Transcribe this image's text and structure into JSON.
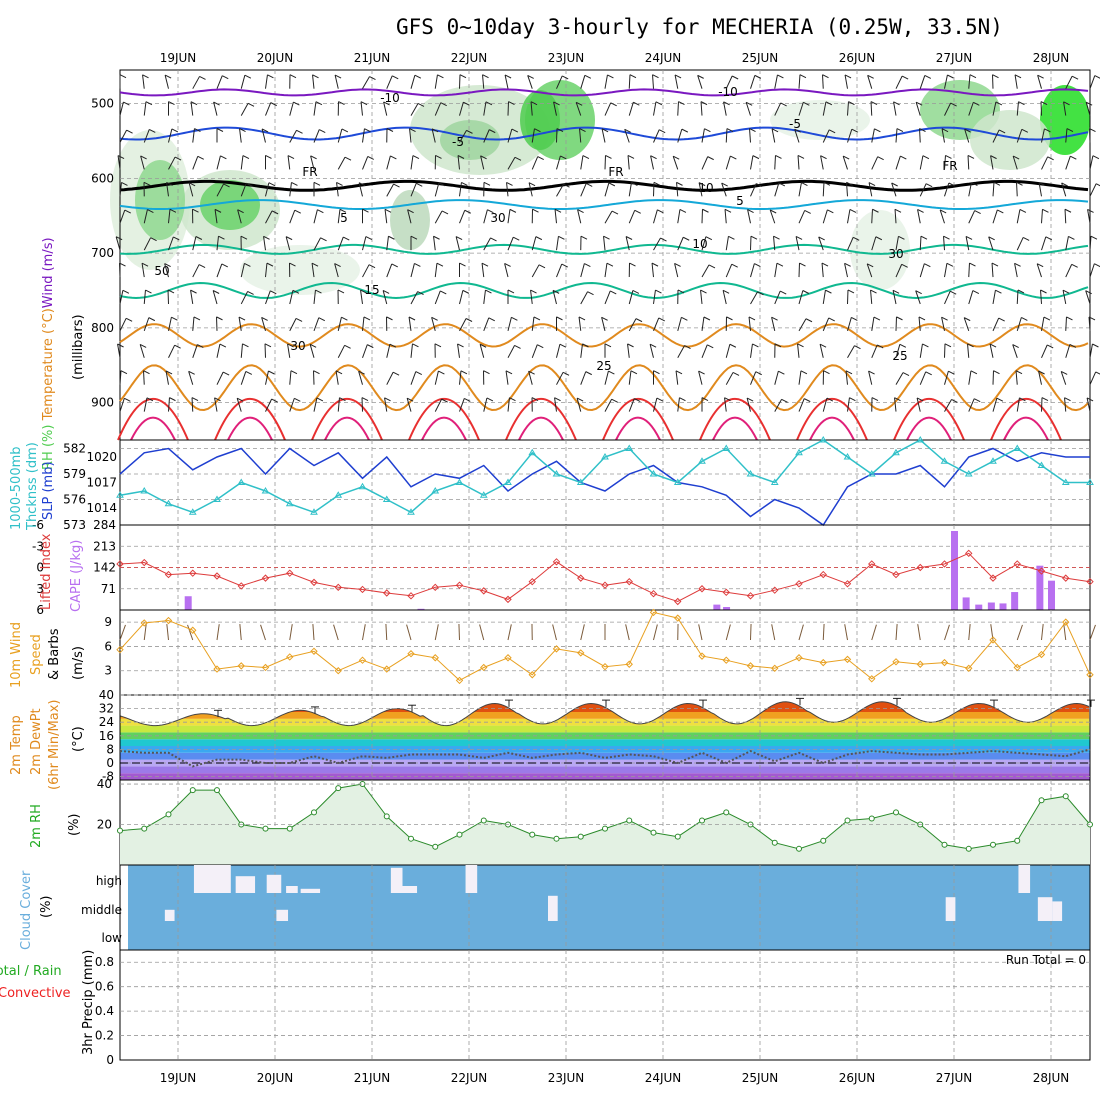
{
  "title": "GFS 0~10day 3-hourly for MECHERIA (0.25W, 33.5N)",
  "days": [
    "19JUN",
    "20JUN",
    "21JUN",
    "22JUN",
    "23JUN",
    "24JUN",
    "25JUN",
    "26JUN",
    "27JUN",
    "28JUN"
  ],
  "colors": {
    "temp_contour_cold": "#7a18c0",
    "temp_contour_blue": "#1e4ad8",
    "freezing": "#000000",
    "temp_contour_cyan": "#14a8d8",
    "temp_contour_teal": "#10b890",
    "temp_contour_orange": "#e08a1e",
    "temp_contour_red": "#e83030",
    "rh_fill": "#4fcc4f",
    "slp_line": "#1f3fd0",
    "thickness_line": "#30c0c8",
    "lifted_index": "#dd3b3b",
    "cape_bar": "#b870f0",
    "wind_speed": "#e8a020",
    "cloud_bg": "#6aaedc",
    "cloud_bar": "#f4f0f8",
    "precip_total": "#22aa22",
    "precip_conv": "#ee2222"
  },
  "panels": {
    "upper_air": {
      "ylabel_parts": [
        "RH (%)",
        "Temperature (°C)",
        "Wind (m/s)"
      ],
      "ylabel_units": "(millibars)",
      "yticks": [
        "500",
        "600",
        "700",
        "800",
        "900"
      ],
      "contour_labels": [
        "-10",
        "-10",
        "-5",
        "-5",
        "-5",
        "FR",
        "FR",
        "FR",
        "5",
        "5",
        "10",
        "15",
        "25",
        "25",
        "50",
        "30",
        "10",
        "30",
        "30",
        "50"
      ]
    },
    "slp": {
      "ylabel_left": "1000-500mb",
      "ylabel_left2": "Thcknss (dm)",
      "ylabel_right": "SLP (mb)",
      "thickness_ticks": [
        "582",
        "579",
        "576",
        "573"
      ],
      "slp_ticks": [
        "1020",
        "1017",
        "1014"
      ]
    },
    "cape": {
      "ylabel_left": "Lifted Index",
      "ylabel_right": "CAPE (J/kg)",
      "li_ticks": [
        "-6",
        "-3",
        "0",
        "3",
        "6"
      ],
      "cape_ticks": [
        "284",
        "213",
        "142",
        "71"
      ]
    },
    "wind": {
      "ylabel_1": "10m Wind",
      "ylabel_2": "Speed",
      "ylabel_3": "& Barbs",
      "ylabel_units": "(m/s)",
      "yticks": [
        "9",
        "6",
        "3"
      ]
    },
    "temp": {
      "ylabel_1": "2m Temp",
      "ylabel_2": "2m DewPt",
      "ylabel_3": "(6hr Min/Max)",
      "ylabel_units": "(°C)",
      "yticks": [
        "40",
        "32",
        "24",
        "16",
        "8",
        "0",
        "-8"
      ]
    },
    "rh": {
      "ylabel": "2m RH",
      "ylabel_units": "(%)",
      "yticks": [
        "40",
        "20"
      ]
    },
    "cloud": {
      "ylabel": "Cloud Cover",
      "ylabel_units": "(%)",
      "levels": [
        "high",
        "middle",
        "low"
      ]
    },
    "precip": {
      "ylabel_1": "Total / Rain",
      "ylabel_2": "Convective",
      "ylabel_3": "3hr Precip (mm)",
      "yticks": [
        "0.8",
        "0.6",
        "0.4",
        "0.2",
        "0"
      ],
      "run_total": "Run Total = 0"
    }
  },
  "chart_data": [
    {
      "type": "line",
      "title": "1000-500mb Thickness / SLP",
      "series": [
        {
          "name": "SLP (mb)",
          "axis": "right",
          "x_days": [
            0,
            0.25,
            0.5,
            0.75,
            1,
            1.25,
            1.5,
            1.75,
            2,
            2.25,
            2.5,
            2.75,
            3,
            3.25,
            3.5,
            3.75,
            4,
            4.25,
            4.5,
            4.75,
            5,
            5.25,
            5.5,
            5.75,
            6,
            6.25,
            6.5,
            6.75,
            7,
            7.25,
            7.5,
            7.75,
            8,
            8.25,
            8.5,
            8.75,
            9,
            9.25,
            9.5,
            9.75,
            10
          ],
          "values": [
            1018,
            1020.5,
            1021,
            1018.5,
            1020,
            1021,
            1018,
            1021,
            1019,
            1020.5,
            1017.5,
            1020,
            1016.5,
            1018,
            1017.5,
            1019,
            1016,
            1018,
            1019.5,
            1017,
            1016,
            1018,
            1019,
            1017,
            1016.5,
            1015.5,
            1013,
            1015,
            1014,
            1012,
            1016.5,
            1018,
            1018,
            1019,
            1016.5,
            1020,
            1021,
            1019.5,
            1020.5,
            1020,
            1020
          ]
        },
        {
          "name": "1000-500mb Thickness (dm)",
          "axis": "left",
          "x_days": [
            0,
            0.25,
            0.5,
            0.75,
            1,
            1.25,
            1.5,
            1.75,
            2,
            2.25,
            2.5,
            2.75,
            3,
            3.25,
            3.5,
            3.75,
            4,
            4.25,
            4.5,
            4.75,
            5,
            5.25,
            5.5,
            5.75,
            6,
            6.25,
            6.5,
            6.75,
            7,
            7.25,
            7.5,
            7.75,
            8,
            8.25,
            8.5,
            8.75,
            9,
            9.25,
            9.5,
            9.75,
            10
          ],
          "values": [
            576.5,
            577,
            575.5,
            574.5,
            576,
            578,
            577,
            575.5,
            574.5,
            576.5,
            577.5,
            576,
            574.5,
            577,
            578,
            576.5,
            578,
            581.5,
            579,
            578,
            581,
            582,
            579,
            578,
            580.5,
            582,
            579,
            578,
            581.5,
            583,
            581,
            579,
            581.5,
            583,
            580.5,
            579,
            580.5,
            582,
            580,
            578,
            578
          ]
        }
      ],
      "ylim_thickness": [
        573,
        583
      ],
      "ylim_slp": [
        1012,
        1022
      ]
    },
    {
      "type": "bar",
      "title": "CAPE / Lifted Index",
      "cape_bars": [
        {
          "day": 0.1,
          "value": 46
        },
        {
          "day": 2.5,
          "value": 4
        },
        {
          "day": 5.55,
          "value": 18
        },
        {
          "day": 5.65,
          "value": 10
        },
        {
          "day": 8.0,
          "value": 264
        },
        {
          "day": 8.12,
          "value": 42
        },
        {
          "day": 8.25,
          "value": 18
        },
        {
          "day": 8.38,
          "value": 25
        },
        {
          "day": 8.5,
          "value": 22
        },
        {
          "day": 8.62,
          "value": 60
        },
        {
          "day": 8.88,
          "value": 148
        },
        {
          "day": 9.0,
          "value": 98
        },
        {
          "day": 9.62,
          "value": 22
        }
      ],
      "lifted_index_values": [
        -0.5,
        -0.7,
        1,
        0.8,
        1.2,
        2.6,
        1.5,
        0.8,
        2.1,
        2.8,
        3.1,
        3.6,
        4.0,
        2.8,
        2.5,
        3.3,
        4.5,
        2.0,
        -0.8,
        1.5,
        2.5,
        2.0,
        3.7,
        4.8,
        3.0,
        3.5,
        4.0,
        3.2,
        2.3,
        1.0,
        2.3,
        -0.5,
        1.0,
        0,
        -0.5,
        -2.0,
        1.5,
        -0.5,
        0.5,
        1.5,
        2.0
      ],
      "li_ylim": [
        -6,
        6
      ],
      "cape_ylim": [
        0,
        284
      ]
    },
    {
      "type": "line",
      "title": "10m Wind Speed",
      "values": [
        5.6,
        8.9,
        9.2,
        8.0,
        3.2,
        3.6,
        3.4,
        4.7,
        5.4,
        3.0,
        4.3,
        3.2,
        5.1,
        4.6,
        1.8,
        3.4,
        4.6,
        2.5,
        5.7,
        5.2,
        3.5,
        3.8,
        10.2,
        9.5,
        4.8,
        4.3,
        3.6,
        3.3,
        4.6,
        4.0,
        4.4,
        2.0,
        4.1,
        3.8,
        4.0,
        3.3,
        6.8,
        3.4,
        5.0,
        9.0,
        2.5
      ],
      "ylim": [
        0,
        10.5
      ]
    },
    {
      "type": "area",
      "title": "2m Temp / DewPt",
      "temp_max": [
        29,
        31,
        32,
        35,
        35,
        35,
        36,
        36,
        35,
        35
      ],
      "temp_min": [
        22,
        22,
        22,
        22,
        23,
        23,
        23,
        24,
        24,
        24
      ],
      "dewpoint": [
        7,
        6,
        6,
        -2,
        2,
        2,
        0,
        0,
        4,
        0,
        4,
        3,
        5,
        5,
        5,
        3,
        6,
        3,
        5,
        6,
        3,
        5,
        4,
        0,
        6,
        0,
        7,
        1,
        6,
        0,
        5,
        7,
        6,
        5,
        5,
        6,
        7,
        6,
        5,
        4,
        8
      ],
      "ylim": [
        -10,
        40
      ]
    },
    {
      "type": "area",
      "title": "2m RH",
      "values": [
        17,
        18,
        25,
        37,
        37,
        20,
        18,
        18,
        26,
        38,
        40,
        24,
        13,
        9,
        15,
        22,
        20,
        15,
        13,
        14,
        18,
        22,
        16,
        14,
        22,
        26,
        20,
        11,
        8,
        12,
        22,
        23,
        26,
        20,
        10,
        8,
        10,
        12,
        32,
        34,
        20
      ],
      "ylim": [
        0,
        42
      ]
    },
    {
      "type": "bar",
      "title": "Cloud Cover",
      "high_bars": [
        {
          "day": 0.35,
          "width": 0.38,
          "value": 100
        },
        {
          "day": 0.78,
          "value": 60,
          "width": 0.2
        },
        {
          "day": 1.1,
          "value": 65,
          "width": 0.15
        },
        {
          "day": 1.3,
          "value": 25,
          "width": 0.12
        },
        {
          "day": 1.45,
          "value": 15,
          "width": 0.2
        },
        {
          "day": 2.38,
          "value": 90,
          "width": 0.12
        },
        {
          "day": 2.5,
          "value": 25,
          "width": 0.15
        },
        {
          "day": 3.15,
          "value": 100,
          "width": 0.12
        },
        {
          "day": 8.85,
          "value": 100,
          "width": 0.12
        }
      ],
      "middle_bars": [
        {
          "day": 0.05,
          "value": 40,
          "width": 0.1
        },
        {
          "day": 1.2,
          "value": 40,
          "width": 0.12
        },
        {
          "day": 4.0,
          "value": 90,
          "width": 0.1
        },
        {
          "day": 8.1,
          "value": 85,
          "width": 0.1
        },
        {
          "day": 9.05,
          "value": 85,
          "width": 0.15
        },
        {
          "day": 9.2,
          "value": 70,
          "width": 0.1
        }
      ]
    },
    {
      "type": "bar",
      "title": "3hr Precip",
      "values": [],
      "ylim": [
        0,
        0.9
      ]
    }
  ]
}
